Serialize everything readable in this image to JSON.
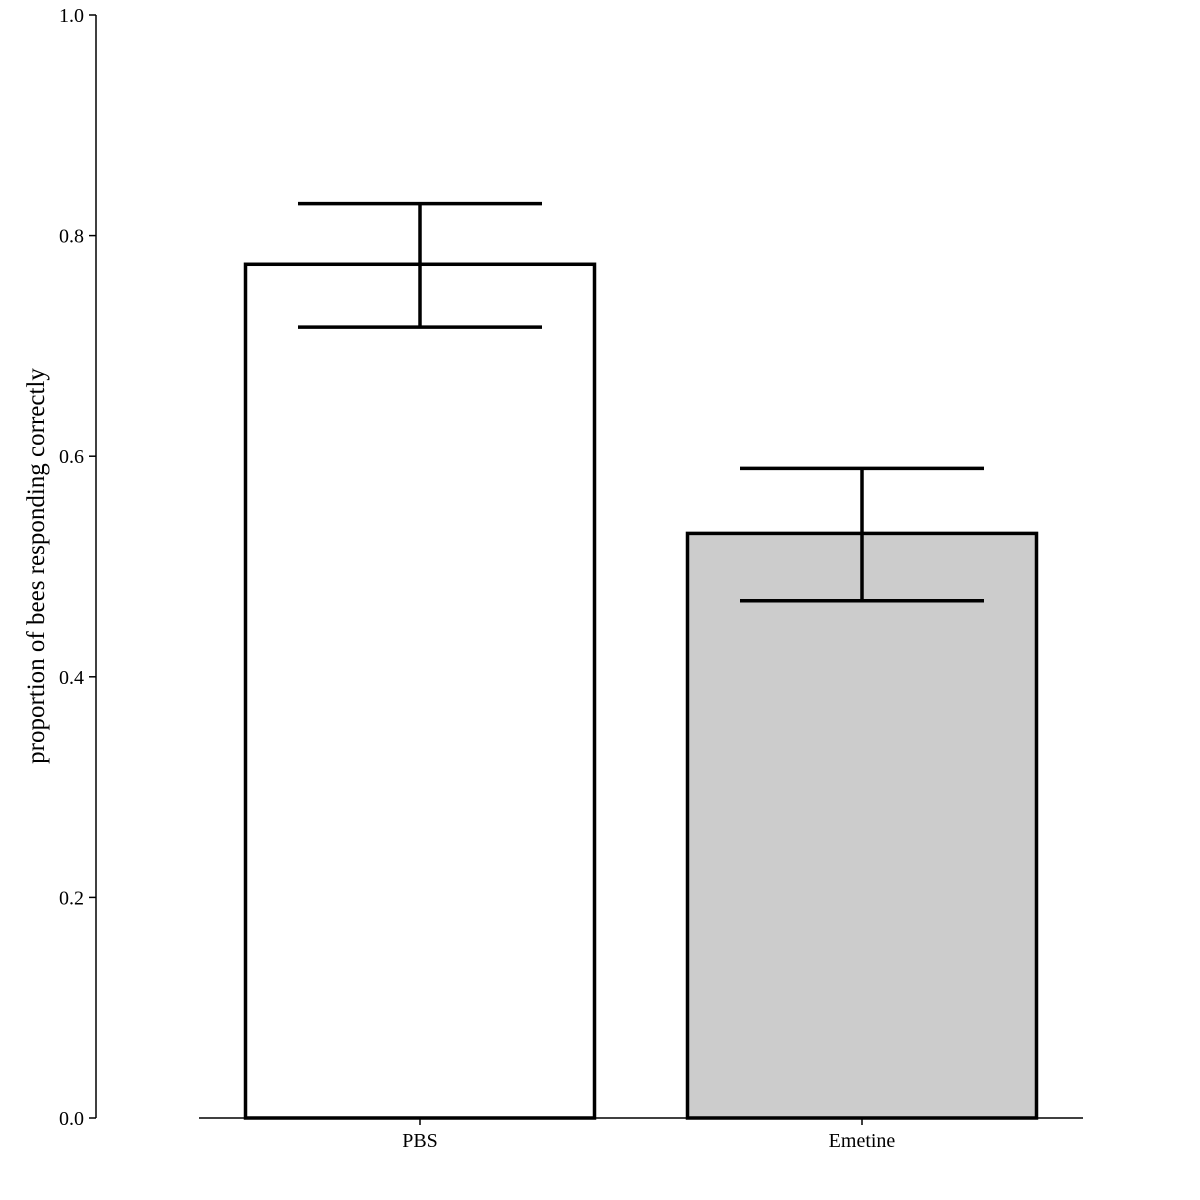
{
  "chart_data": {
    "type": "bar",
    "categories": [
      "PBS",
      "Emetine"
    ],
    "series": [
      {
        "values": [
          0.774,
          0.53
        ],
        "error_low": [
          0.717,
          0.469
        ],
        "error_high": [
          0.829,
          0.589
        ],
        "fill_colors": [
          "#ffffff",
          "#cccccc"
        ]
      }
    ],
    "xlabel": "",
    "ylabel": "proportion of bees responding correctly",
    "ylim": [
      0.0,
      1.0
    ],
    "yticks": [
      0.0,
      0.2,
      0.4,
      0.6,
      0.8,
      1.0
    ],
    "ytick_labels": [
      "0.0",
      "0.2",
      "0.4",
      "0.6",
      "0.8",
      "1.0"
    ],
    "grid": false,
    "legend": "none"
  }
}
